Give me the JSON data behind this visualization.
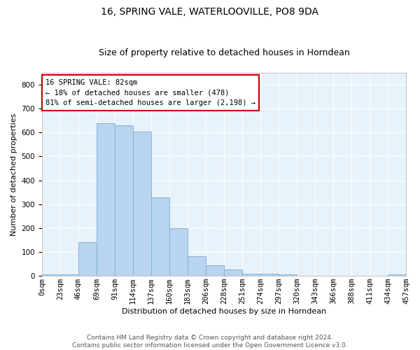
{
  "title": "16, SPRING VALE, WATERLOOVILLE, PO8 9DA",
  "subtitle": "Size of property relative to detached houses in Horndean",
  "xlabel": "Distribution of detached houses by size in Horndean",
  "ylabel": "Number of detached properties",
  "bar_color": "#b8d4ee",
  "bar_edge_color": "#7aadd4",
  "background_color": "#e8f2fb",
  "grid_color": "#ffffff",
  "annotation_text": "16 SPRING VALE: 82sqm\n← 18% of detached houses are smaller (478)\n81% of semi-detached houses are larger (2,198) →",
  "annotation_box_color": "#ffffff",
  "annotation_box_edge_color": "#cc0000",
  "bin_labels": [
    "0sqm",
    "23sqm",
    "46sqm",
    "69sqm",
    "91sqm",
    "114sqm",
    "137sqm",
    "160sqm",
    "183sqm",
    "206sqm",
    "228sqm",
    "251sqm",
    "274sqm",
    "297sqm",
    "320sqm",
    "343sqm",
    "366sqm",
    "388sqm",
    "411sqm",
    "434sqm",
    "457sqm"
  ],
  "counts": [
    5,
    5,
    140,
    638,
    630,
    605,
    330,
    200,
    83,
    45,
    27,
    10,
    10,
    5,
    0,
    0,
    0,
    0,
    0,
    5
  ],
  "ylim": [
    0,
    850
  ],
  "yticks": [
    0,
    100,
    200,
    300,
    400,
    500,
    600,
    700,
    800
  ],
  "footer_text": "Contains HM Land Registry data © Crown copyright and database right 2024.\nContains public sector information licensed under the Open Government Licence v3.0.",
  "title_fontsize": 10,
  "subtitle_fontsize": 9,
  "axis_label_fontsize": 8,
  "tick_fontsize": 7.5,
  "annotation_fontsize": 7.5,
  "footer_fontsize": 6.5
}
